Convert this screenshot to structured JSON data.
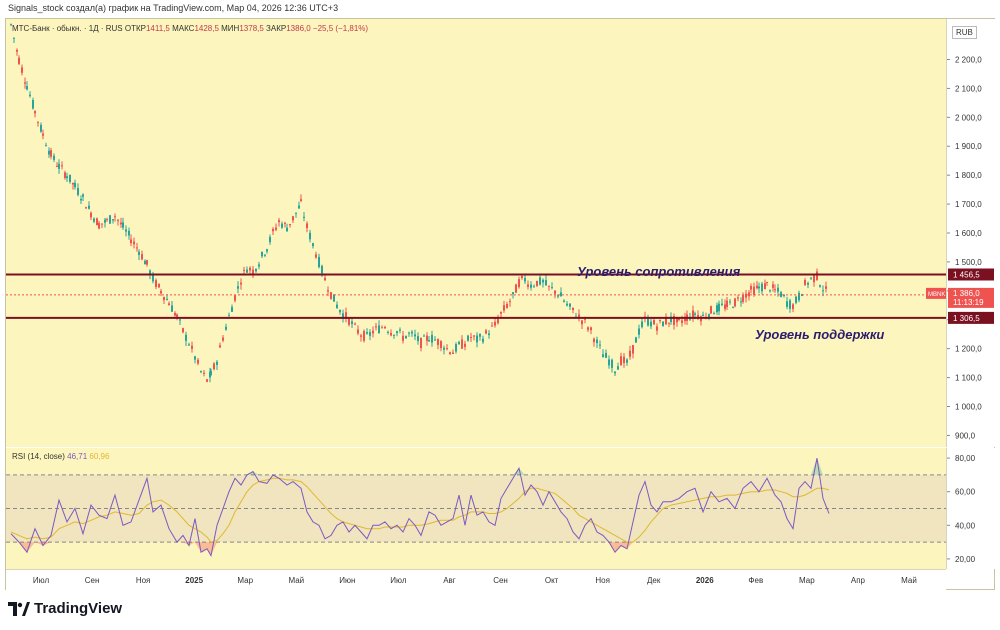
{
  "header": "Signals_stock создал(а) график на TradingView.com, Мар 04, 2026 12:36 UTC+3",
  "legend": {
    "symbol": "МТС-Банк · обыкн. · 1Д · RUS",
    "open_label": "ОТКР",
    "open": "1411,5",
    "high_label": "МАКС",
    "high": "1428,5",
    "low_label": "МИН",
    "low": "1378,5",
    "close_label": "ЗАКР",
    "close": "1386,0",
    "change": "−25,5 (−1,81%)"
  },
  "currency": "RUB",
  "annotations": {
    "resistance": "Уровень сопротивления",
    "support": "Уровень поддержки"
  },
  "rsi_legend": {
    "name": "RSI (14, close)",
    "rsi": "46,71",
    "ma": "60,96"
  },
  "brand": "TradingView",
  "colors": {
    "up": "#26a69a",
    "down": "#ef5350",
    "level": "#7a1020",
    "rsi": "#7e57c2",
    "rsi_ma": "#e0b830",
    "pane": "#fdf5be"
  },
  "chart_data": [
    {
      "type": "candlestick",
      "title": "МТС-Банк · обыкн. · 1Д · RUS",
      "ylim": [
        860,
        2340
      ],
      "yticks": [
        900,
        1000,
        1100,
        1200,
        1300,
        1400,
        1500,
        1600,
        1700,
        1800,
        1900,
        2000,
        2100,
        2200
      ],
      "ytick_labels": [
        "900,0",
        "1 000,0",
        "1 100,0",
        "1 200,0",
        "1 300,0",
        "1 400,0",
        "1 500,0",
        "1 600,0",
        "1 700,0",
        "1 800,0",
        "1 900,0",
        "2 000,0",
        "2 100,0",
        "2 200,0"
      ],
      "x_labels": [
        "Июл",
        "Сен",
        "Ноя",
        "2025",
        "Мар",
        "Май",
        "Июн",
        "Июл",
        "Авг",
        "Сен",
        "Окт",
        "Ноя",
        "Дек",
        "2026",
        "Фев",
        "Мар",
        "Апр",
        "Май"
      ],
      "levels": [
        {
          "name": "resistance",
          "value": 1456.5,
          "label": "1 456,5"
        },
        {
          "name": "support",
          "value": 1306.5,
          "label": "1 306,5"
        }
      ],
      "last_price": {
        "ticker": "MBNK",
        "value": 1386.0,
        "label": "1 386,0",
        "time": "11:13:19"
      },
      "close_path": [
        [
          0,
          2320
        ],
        [
          8,
          2200
        ],
        [
          16,
          2110
        ],
        [
          24,
          2020
        ],
        [
          32,
          1940
        ],
        [
          40,
          1870
        ],
        [
          48,
          1830
        ],
        [
          56,
          1800
        ],
        [
          64,
          1760
        ],
        [
          72,
          1720
        ],
        [
          80,
          1670
        ],
        [
          88,
          1630
        ],
        [
          96,
          1640
        ],
        [
          104,
          1660
        ],
        [
          112,
          1620
        ],
        [
          120,
          1580
        ],
        [
          128,
          1540
        ],
        [
          136,
          1490
        ],
        [
          142,
          1440
        ],
        [
          150,
          1400
        ],
        [
          158,
          1360
        ],
        [
          166,
          1310
        ],
        [
          172,
          1260
        ],
        [
          178,
          1220
        ],
        [
          184,
          1170
        ],
        [
          190,
          1120
        ],
        [
          196,
          1090
        ],
        [
          200,
          1110
        ],
        [
          206,
          1160
        ],
        [
          212,
          1240
        ],
        [
          218,
          1310
        ],
        [
          224,
          1380
        ],
        [
          230,
          1440
        ],
        [
          236,
          1480
        ],
        [
          242,
          1470
        ],
        [
          248,
          1500
        ],
        [
          256,
          1550
        ],
        [
          262,
          1600
        ],
        [
          268,
          1640
        ],
        [
          276,
          1620
        ],
        [
          282,
          1650
        ],
        [
          290,
          1700
        ],
        [
          296,
          1620
        ],
        [
          302,
          1560
        ],
        [
          308,
          1500
        ],
        [
          314,
          1440
        ],
        [
          320,
          1390
        ],
        [
          326,
          1350
        ],
        [
          332,
          1320
        ],
        [
          338,
          1300
        ],
        [
          344,
          1270
        ],
        [
          350,
          1250
        ],
        [
          356,
          1240
        ],
        [
          362,
          1260
        ],
        [
          368,
          1270
        ],
        [
          374,
          1280
        ],
        [
          380,
          1260
        ],
        [
          386,
          1260
        ],
        [
          392,
          1240
        ],
        [
          398,
          1250
        ],
        [
          404,
          1240
        ],
        [
          410,
          1220
        ],
        [
          418,
          1240
        ],
        [
          424,
          1230
        ],
        [
          430,
          1220
        ],
        [
          436,
          1200
        ],
        [
          442,
          1190
        ],
        [
          448,
          1210
        ],
        [
          454,
          1220
        ],
        [
          460,
          1240
        ],
        [
          466,
          1230
        ],
        [
          472,
          1240
        ],
        [
          478,
          1260
        ],
        [
          484,
          1280
        ],
        [
          490,
          1320
        ],
        [
          496,
          1350
        ],
        [
          502,
          1380
        ],
        [
          508,
          1430
        ],
        [
          514,
          1440
        ],
        [
          520,
          1420
        ],
        [
          526,
          1430
        ],
        [
          532,
          1430
        ],
        [
          538,
          1410
        ],
        [
          544,
          1400
        ],
        [
          550,
          1380
        ],
        [
          556,
          1350
        ],
        [
          562,
          1330
        ],
        [
          568,
          1310
        ],
        [
          574,
          1290
        ],
        [
          580,
          1260
        ],
        [
          586,
          1220
        ],
        [
          592,
          1180
        ],
        [
          598,
          1160
        ],
        [
          604,
          1130
        ],
        [
          610,
          1160
        ],
        [
          616,
          1150
        ],
        [
          622,
          1200
        ],
        [
          628,
          1260
        ],
        [
          634,
          1300
        ],
        [
          640,
          1290
        ],
        [
          646,
          1280
        ],
        [
          652,
          1290
        ],
        [
          660,
          1300
        ],
        [
          668,
          1290
        ],
        [
          676,
          1310
        ],
        [
          684,
          1320
        ],
        [
          692,
          1310
        ],
        [
          700,
          1330
        ],
        [
          708,
          1340
        ],
        [
          716,
          1350
        ],
        [
          724,
          1360
        ],
        [
          732,
          1380
        ],
        [
          740,
          1400
        ],
        [
          748,
          1410
        ],
        [
          756,
          1420
        ],
        [
          764,
          1400
        ],
        [
          770,
          1390
        ],
        [
          776,
          1360
        ],
        [
          782,
          1350
        ],
        [
          788,
          1380
        ],
        [
          794,
          1420
        ],
        [
          800,
          1440
        ],
        [
          806,
          1450
        ],
        [
          812,
          1410
        ],
        [
          818,
          1386
        ]
      ]
    },
    {
      "type": "line",
      "title": "RSI (14, close)",
      "ylim": [
        14,
        86
      ],
      "yticks": [
        20,
        40,
        60,
        80
      ],
      "ytick_labels": [
        "20,00",
        "40,00",
        "60,00",
        "80,00"
      ],
      "bands": [
        30,
        50,
        70
      ],
      "series": [
        {
          "name": "RSI",
          "x": [
            0,
            8,
            16,
            24,
            32,
            40,
            48,
            56,
            64,
            72,
            80,
            88,
            96,
            104,
            112,
            120,
            128,
            136,
            142,
            150,
            158,
            166,
            172,
            178,
            184,
            190,
            196,
            200,
            206,
            212,
            218,
            224,
            230,
            236,
            242,
            248,
            256,
            262,
            268,
            276,
            282,
            290,
            296,
            302,
            308,
            314,
            320,
            326,
            332,
            338,
            344,
            350,
            356,
            362,
            368,
            374,
            380,
            386,
            392,
            398,
            404,
            410,
            418,
            424,
            430,
            436,
            442,
            448,
            454,
            460,
            466,
            472,
            478,
            484,
            490,
            496,
            502,
            508,
            514,
            520,
            526,
            532,
            538,
            544,
            550,
            556,
            562,
            568,
            574,
            580,
            586,
            592,
            598,
            604,
            610,
            616,
            622,
            628,
            634,
            640,
            646,
            652,
            660,
            668,
            676,
            684,
            692,
            700,
            708,
            716,
            724,
            732,
            740,
            748,
            756,
            764,
            770,
            776,
            782,
            788,
            794,
            800,
            806,
            812,
            818
          ],
          "values": [
            35,
            30,
            24,
            38,
            28,
            34,
            55,
            42,
            50,
            35,
            52,
            46,
            44,
            58,
            40,
            42,
            55,
            68,
            48,
            52,
            38,
            30,
            34,
            28,
            44,
            24,
            26,
            22,
            40,
            50,
            60,
            68,
            64,
            70,
            72,
            66,
            65,
            70,
            68,
            64,
            66,
            62,
            48,
            42,
            40,
            32,
            34,
            40,
            42,
            36,
            40,
            36,
            32,
            40,
            40,
            42,
            38,
            40,
            36,
            44,
            40,
            34,
            48,
            46,
            40,
            42,
            44,
            58,
            40,
            58,
            46,
            48,
            42,
            40,
            56,
            62,
            68,
            74,
            58,
            64,
            60,
            52,
            60,
            54,
            48,
            44,
            36,
            32,
            40,
            44,
            36,
            34,
            30,
            24,
            28,
            26,
            42,
            58,
            66,
            52,
            48,
            54,
            54,
            56,
            60,
            62,
            48,
            60,
            54,
            56,
            50,
            62,
            66,
            60,
            68,
            58,
            54,
            44,
            38,
            62,
            66,
            62,
            80,
            56,
            47
          ]
        },
        {
          "name": "RSI MA",
          "values": [
            36,
            34,
            32,
            33,
            32,
            33,
            38,
            40,
            42,
            41,
            43,
            45,
            46,
            48,
            47,
            46,
            47,
            52,
            54,
            55,
            52,
            48,
            44,
            40,
            38,
            36,
            33,
            30,
            31,
            35,
            40,
            48,
            54,
            60,
            64,
            66,
            67,
            68,
            68,
            67,
            67,
            66,
            63,
            59,
            55,
            51,
            47,
            44,
            42,
            41,
            40,
            39,
            38,
            38,
            38,
            39,
            39,
            39,
            39,
            40,
            40,
            40,
            41,
            42,
            43,
            43,
            43,
            45,
            46,
            48,
            48,
            48,
            47,
            47,
            48,
            50,
            53,
            56,
            60,
            62,
            62,
            61,
            60,
            59,
            56,
            53,
            50,
            46,
            44,
            42,
            40,
            38,
            36,
            34,
            32,
            30,
            30,
            33,
            37,
            42,
            46,
            50,
            52,
            53,
            54,
            55,
            56,
            57,
            57,
            58,
            58,
            59,
            60,
            60,
            61,
            61,
            60,
            59,
            57,
            57,
            58,
            60,
            62,
            62,
            61
          ]
        }
      ]
    }
  ]
}
